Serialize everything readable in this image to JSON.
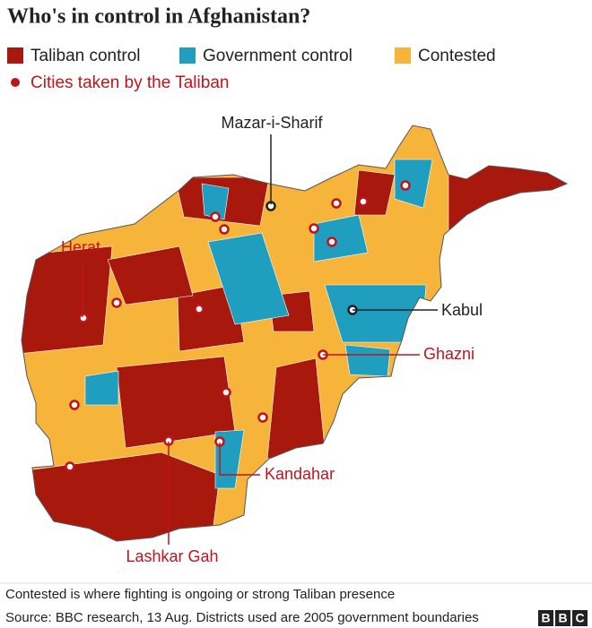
{
  "title": "Who's in control in Afghanistan?",
  "legend": [
    {
      "label": "Taliban control",
      "color": "#a8180c"
    },
    {
      "label": "Government control",
      "color": "#1f9ec0"
    },
    {
      "label": "Contested",
      "color": "#f7b43a"
    }
  ],
  "cities_legend": {
    "label": "Cities taken by the Taliban",
    "color": "#c0141c"
  },
  "cities": [
    {
      "name": "Mazar-i-Sharif"
    },
    {
      "name": "Herat"
    },
    {
      "name": "Kabul"
    },
    {
      "name": "Ghazni"
    },
    {
      "name": "Kandahar"
    },
    {
      "name": "Lashkar Gah"
    }
  ],
  "note": "Contested is where fighting is ongoing or strong Taliban presence",
  "source": "Source: BBC research, 13 Aug. Districts used are 2005 government boundaries",
  "logo": [
    "B",
    "B",
    "C"
  ]
}
